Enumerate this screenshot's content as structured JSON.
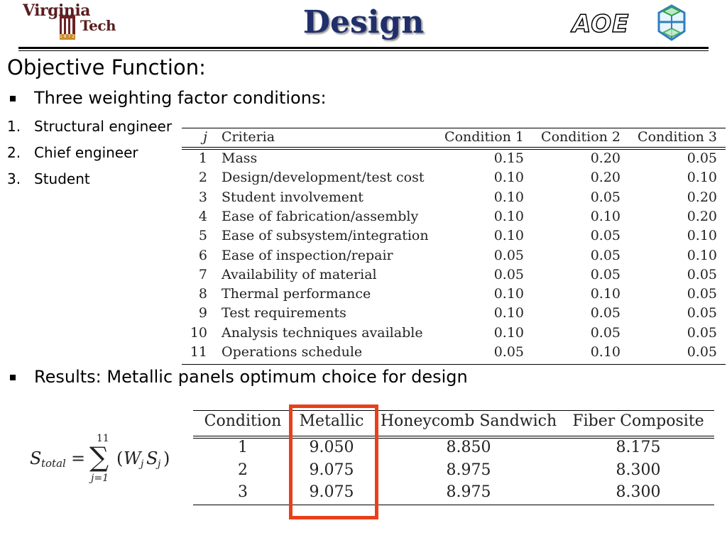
{
  "header": {
    "logo_left": {
      "word1": "Virginia",
      "word2": "Tech",
      "year": "1 8 7 2"
    },
    "title": "Design",
    "logo_right": {
      "text": "AOE",
      "icon": "hexagon-cube-icon"
    }
  },
  "content": {
    "heading": "Objective Function:",
    "bullet1": "Three weighting factor conditions:",
    "numbered": [
      {
        "num": "1.",
        "text": "Structural engineer"
      },
      {
        "num": "2.",
        "text": "Chief engineer"
      },
      {
        "num": "3.",
        "text": "Student"
      }
    ],
    "bullet2": "Results:  Metallic panels optimum choice for design"
  },
  "criteria_table": {
    "headers": [
      "j",
      "Criteria",
      "Condition 1",
      "Condition 2",
      "Condition 3"
    ],
    "rows": [
      [
        "1",
        "Mass",
        "0.15",
        "0.20",
        "0.05"
      ],
      [
        "2",
        "Design/development/test cost",
        "0.10",
        "0.20",
        "0.10"
      ],
      [
        "3",
        "Student involvement",
        "0.10",
        "0.05",
        "0.20"
      ],
      [
        "4",
        "Ease of fabrication/assembly",
        "0.10",
        "0.10",
        "0.20"
      ],
      [
        "5",
        "Ease of subsystem/integration",
        "0.10",
        "0.05",
        "0.10"
      ],
      [
        "6",
        "Ease of inspection/repair",
        "0.05",
        "0.05",
        "0.10"
      ],
      [
        "7",
        "Availability of material",
        "0.05",
        "0.05",
        "0.05"
      ],
      [
        "8",
        "Thermal performance",
        "0.10",
        "0.10",
        "0.05"
      ],
      [
        "9",
        "Test requirements",
        "0.10",
        "0.05",
        "0.05"
      ],
      [
        "10",
        "Analysis techniques available",
        "0.10",
        "0.05",
        "0.05"
      ],
      [
        "11",
        "Operations schedule",
        "0.05",
        "0.10",
        "0.05"
      ]
    ]
  },
  "formula": {
    "lhs": "S",
    "lhs_sub": "total",
    "eq": "=",
    "sum_upper": "11",
    "sum_lower": "j=1",
    "sigma": "∑",
    "body_open": "(",
    "w": "W",
    "w_sub": "j",
    "s": "S",
    "s_sub": "j",
    "body_close": ")"
  },
  "results_table": {
    "headers": [
      "Condition",
      "Metallic",
      "Honeycomb Sandwich",
      "Fiber Composite"
    ],
    "rows": [
      [
        "1",
        "9.050",
        "8.850",
        "8.175"
      ],
      [
        "2",
        "9.075",
        "8.975",
        "8.300"
      ],
      [
        "3",
        "9.075",
        "8.975",
        "8.300"
      ]
    ],
    "highlight_color": "#e8401c"
  }
}
